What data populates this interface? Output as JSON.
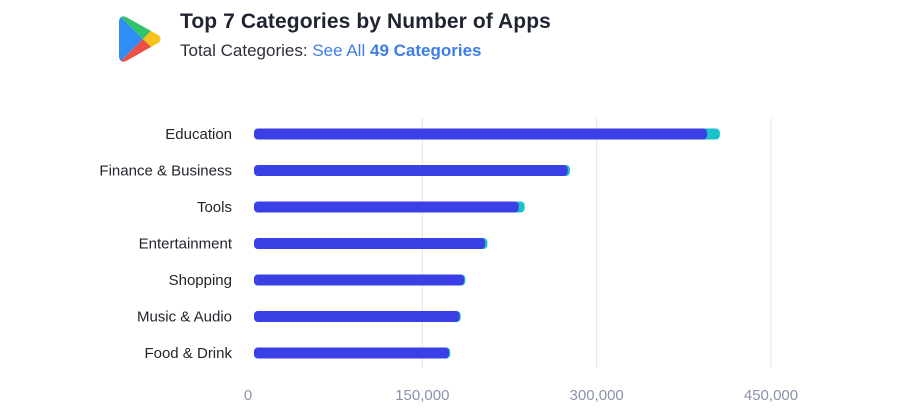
{
  "header": {
    "logo_icon": "google-play-icon",
    "title": "Top 7 Categories by Number of Apps",
    "subtitle_prefix": "Total Categories:",
    "see_all_label": "See All",
    "categories_count_label": "49 Categories"
  },
  "colors": {
    "primary_bar": "#3b3fe6",
    "secondary_bar": "#19c2c9",
    "gridline": "#e2e4ea"
  },
  "chart_data": {
    "type": "bar",
    "orientation": "horizontal",
    "stacked": true,
    "categories": [
      "Education",
      "Finance & Business",
      "Tools",
      "Entertainment",
      "Shopping",
      "Music & Audio",
      "Food & Drink"
    ],
    "series": [
      {
        "values": [
          395000,
          275000,
          233000,
          204000,
          186000,
          182000,
          173000
        ]
      },
      {
        "values": [
          11000,
          2000,
          5000,
          2000,
          1000,
          1000,
          1000
        ]
      }
    ],
    "xticks": [
      "0",
      "150,000",
      "300,000",
      "450,000"
    ],
    "xtick_values": [
      0,
      150000,
      300000,
      450000
    ],
    "xlim": [
      0,
      450000
    ],
    "grid": true
  }
}
